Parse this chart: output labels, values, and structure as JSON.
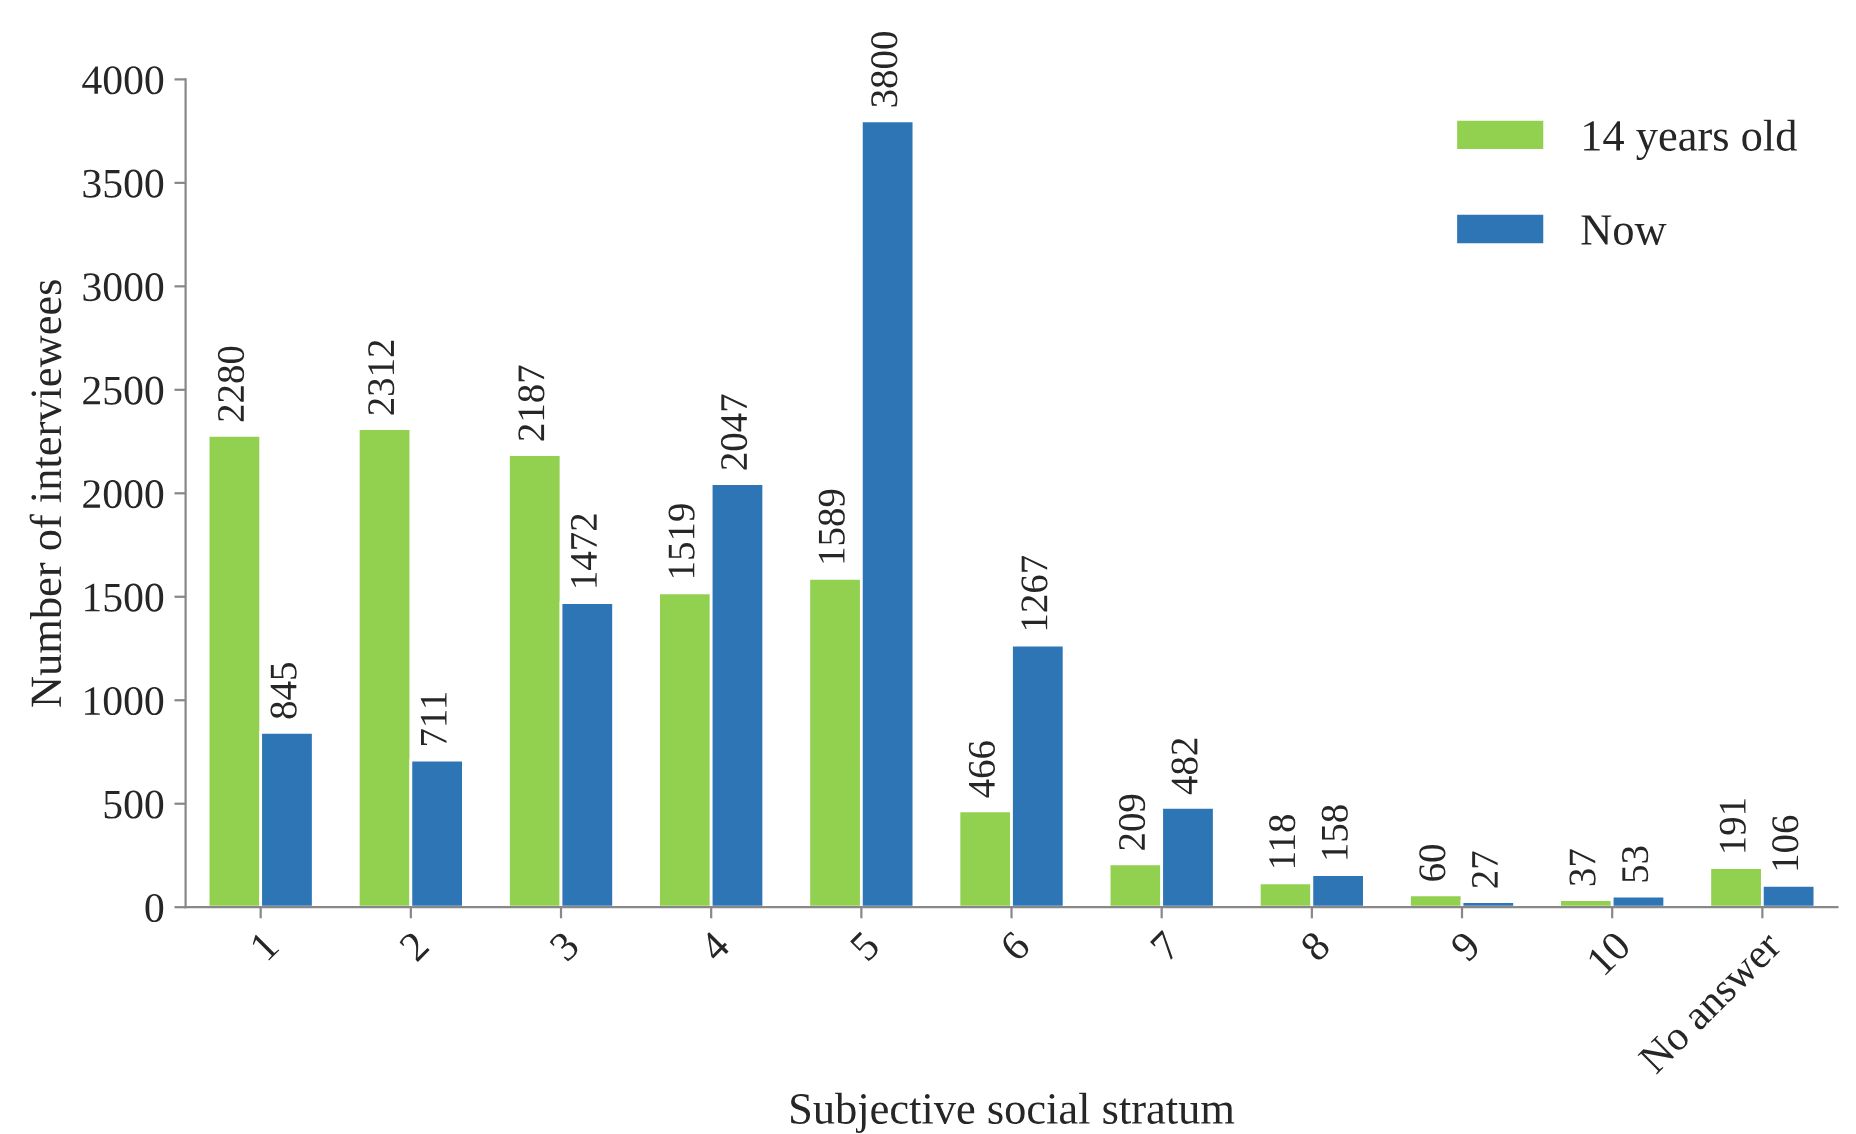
{
  "chart_data": {
    "type": "bar",
    "xlabel": "Subjective social stratum",
    "ylabel": "Number of interviewees",
    "categories": [
      "1",
      "2",
      "3",
      "4",
      "5",
      "6",
      "7",
      "8",
      "9",
      "10",
      "No answer"
    ],
    "series": [
      {
        "name": "14 years old",
        "color": "#92d050",
        "values": [
          2280,
          2312,
          2187,
          1519,
          1589,
          466,
          209,
          118,
          60,
          37,
          191
        ]
      },
      {
        "name": "Now",
        "color": "#2e75b6",
        "values": [
          845,
          711,
          1472,
          2047,
          3800,
          1267,
          482,
          158,
          27,
          53,
          106
        ]
      }
    ],
    "ylim": [
      0,
      4000
    ],
    "yticks": [
      0,
      500,
      1000,
      1500,
      2000,
      2500,
      3000,
      3500,
      4000
    ],
    "data_labels": true,
    "grid": false,
    "legend": "top right"
  }
}
